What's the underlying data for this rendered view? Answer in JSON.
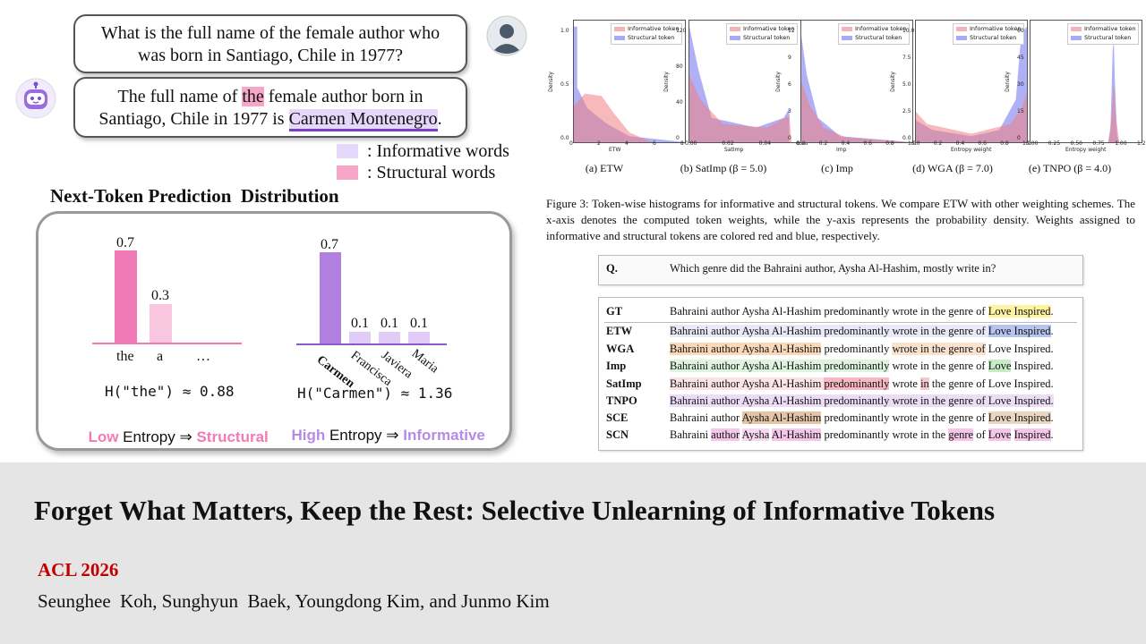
{
  "dialog": {
    "question": [
      "What is the full name of the female author who",
      "was born in Santiago, Chile in 1977?"
    ],
    "answer_pre": "The full name of ",
    "answer_struct": "the",
    "answer_mid": " female author born in",
    "answer_line2_pre": "Santiago, Chile in 1977 is ",
    "answer_info": "Carmen Montenegro",
    "answer_end": ".",
    "legend_info": ": Informative words",
    "legend_struct": ": Structural words"
  },
  "ntp": {
    "title": "Next-Token Prediction  Distribution",
    "left": {
      "bars": [
        {
          "label": "the",
          "value": 0.7,
          "text": "0.7"
        },
        {
          "label": "a",
          "value": 0.3,
          "text": "0.3"
        },
        {
          "label": "…",
          "value": 0,
          "text": ""
        }
      ],
      "entropy": "H(\"the\") ≈ 0.88",
      "caption_low": "Low",
      "caption_mid": " Entropy ⇒ ",
      "caption_type": "Structural"
    },
    "right": {
      "bars": [
        {
          "label": "Carmen",
          "value": 0.7,
          "text": "0.7"
        },
        {
          "label": "Francisca",
          "value": 0.1,
          "text": "0.1"
        },
        {
          "label": "Javiera",
          "value": 0.1,
          "text": "0.1"
        },
        {
          "label": "Maria",
          "value": 0.1,
          "text": "0.1"
        }
      ],
      "entropy": "H(\"Carmen\") ≈ 1.36",
      "caption_high": "High",
      "caption_mid": " Entropy ⇒ ",
      "caption_type": "Informative"
    }
  },
  "figure": {
    "legend_info": "Informative token",
    "legend_struct": "Structural token",
    "panels": [
      {
        "caption": "(a) ETW",
        "xlabel": "ETW",
        "ylabel": "Density",
        "xticks": [
          "0",
          "2",
          "4",
          "6",
          "8"
        ],
        "yticks": [
          "0.0",
          "0.5",
          "1.0"
        ]
      },
      {
        "caption": "(b) SatImp (β = 5.0)",
        "xlabel": "SatImp",
        "ylabel": "Density",
        "xticks": [
          "0.00",
          "0.02",
          "0.04",
          "0.06"
        ],
        "yticks": [
          "0",
          "40",
          "80",
          "120"
        ]
      },
      {
        "caption": "(c) Imp",
        "xlabel": "Imp",
        "ylabel": "Density",
        "xticks": [
          "0.0",
          "0.2",
          "0.4",
          "0.6",
          "0.8",
          "1.0"
        ],
        "yticks": [
          "0",
          "3",
          "6",
          "9",
          "12"
        ]
      },
      {
        "caption": "(d) WGA (β = 7.0)",
        "xlabel": "Entropy weight",
        "ylabel": "Density",
        "xticks": [
          "0.0",
          "0.2",
          "0.4",
          "0.6",
          "0.8",
          "1.0"
        ],
        "yticks": [
          "0.0",
          "2.5",
          "5.0",
          "7.5",
          "10.0"
        ]
      },
      {
        "caption": "(e) TNPO (β = 4.0)",
        "xlabel": "Entropy weight",
        "ylabel": "Density",
        "xticks": [
          "0.00",
          "0.25",
          "0.50",
          "0.75",
          "1.00",
          "1.25"
        ],
        "yticks": [
          "0",
          "15",
          "30",
          "45",
          "60"
        ]
      }
    ],
    "caption": "Figure 3: Token-wise histograms for informative and structural tokens. We compare ETW with other weighting schemes. The x-axis denotes the computed token weights, while the y-axis represents the probability density. Weights assigned to informative and structural tokens are colored red and blue, respectively.",
    "colors": {
      "informative": "#f08080",
      "structural": "#7070f0"
    }
  },
  "example": {
    "q_label": "Q.",
    "question": "Which genre did the Bahraini author, Aysha Al-Hashim, mostly write in?",
    "rows": [
      {
        "label": "GT",
        "segments": [
          [
            "Bahraini author Aysha Al-Hashim predominantly wrote in the genre of ",
            ""
          ],
          [
            "Love Inspired",
            "#fff3a0"
          ],
          [
            ".",
            ""
          ]
        ]
      },
      {
        "label": "ETW",
        "segments": [
          [
            "Bahraini author Aysha Al-Hashim predominantly wrote in the genre of ",
            "#e8eaf8"
          ],
          [
            "Love Inspired",
            "#b8c4f0"
          ],
          [
            ".",
            ""
          ]
        ]
      },
      {
        "label": "WGA",
        "segments": [
          [
            "Bahraini author Aysha Al-Hashim",
            "#fbd8b8"
          ],
          [
            " predominantly ",
            ""
          ],
          [
            "wrote in the genre of",
            "#fbe2cc"
          ],
          [
            " Love Inspired.",
            ""
          ]
        ]
      },
      {
        "label": "Imp",
        "segments": [
          [
            "Bahraini author Aysha Al-Hashim predominantly",
            "#dff3df"
          ],
          [
            " wrote in the genre of ",
            ""
          ],
          [
            "Love",
            "#c6ecc6"
          ],
          [
            " Inspired.",
            ""
          ]
        ]
      },
      {
        "label": "SatImp",
        "segments": [
          [
            "Bahraini author Aysha Al-Hashim ",
            "#fbe4e8"
          ],
          [
            "predominantly",
            "#f6b8c2"
          ],
          [
            " wrote ",
            ""
          ],
          [
            "in",
            "#f6c8cf"
          ],
          [
            " the genre of Love Inspired.",
            ""
          ]
        ]
      },
      {
        "label": "TNPO",
        "segments": [
          [
            "Bahraini author Aysha Al-Hashim predominantly wrote in the genre of Love Inspired.",
            "#ecdcf6"
          ]
        ]
      },
      {
        "label": "SCE",
        "segments": [
          [
            "Bahraini author ",
            ""
          ],
          [
            "Aysha Al-Hashim",
            "#e2c4a8"
          ],
          [
            " predominantly wrote in the genre of ",
            ""
          ],
          [
            "Love Inspired",
            "#ead6c2"
          ],
          [
            ".",
            ""
          ]
        ]
      },
      {
        "label": "SCN",
        "segments": [
          [
            "Bahraini ",
            ""
          ],
          [
            "author",
            "#f4c6ea"
          ],
          [
            " ",
            ""
          ],
          [
            "Aysha",
            "#f8d8f0"
          ],
          [
            " ",
            ""
          ],
          [
            "Al-Hashim",
            "#f4c6ea"
          ],
          [
            " predominantly wrote in the ",
            ""
          ],
          [
            "genre",
            "#f4c6ea"
          ],
          [
            " of ",
            ""
          ],
          [
            "Love",
            "#f4c6ea"
          ],
          [
            " ",
            ""
          ],
          [
            "Inspired",
            "#f4c6ea"
          ],
          [
            ".",
            ""
          ]
        ]
      }
    ]
  },
  "paper": {
    "title": "Forget What Matters, Keep the Rest: Selective Unlearning of Informative Tokens",
    "venue": "ACL 2026",
    "authors": "Seunghee  Koh, Sunghyun  Baek, Youngdong Kim, and Junmo Kim"
  }
}
